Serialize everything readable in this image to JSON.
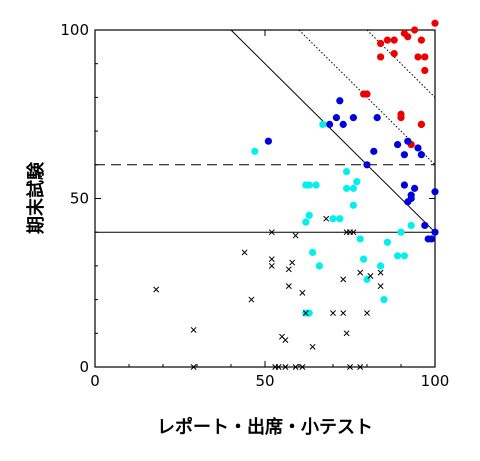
{
  "chart_data": {
    "type": "scatter",
    "title": "",
    "xlabel": "レポート・出席・小テスト",
    "ylabel": "期末試験",
    "xlim": [
      0,
      100
    ],
    "ylim": [
      0,
      100
    ],
    "xticks": [
      0,
      50,
      100
    ],
    "yticks": [
      0,
      50,
      100
    ],
    "grid": false,
    "colors": {
      "red": "#ee0000",
      "blue": "#0000dd",
      "cyan": "#00f0f0",
      "black": "#000000"
    },
    "reference_lines": [
      {
        "kind": "horizontal",
        "y": 60,
        "style": "dashed"
      },
      {
        "kind": "horizontal",
        "y": 40,
        "style": "solid"
      },
      {
        "kind": "diagonal",
        "x_plus_y": 140,
        "style": "solid"
      },
      {
        "kind": "diagonal",
        "x_plus_y": 160,
        "style": "dotted"
      },
      {
        "kind": "diagonal",
        "x_plus_y": 180,
        "style": "dotted"
      }
    ],
    "series": [
      {
        "color": "red",
        "marker": "filled-circle",
        "x": [
          84,
          84,
          86,
          88,
          88,
          91,
          92,
          94,
          95,
          96,
          97,
          97,
          100,
          90,
          90,
          79,
          80,
          93,
          96,
          96
        ],
        "y": [
          92,
          96,
          97,
          97,
          93,
          99,
          98,
          100,
          92,
          97,
          92,
          88,
          102,
          75,
          74,
          81,
          81,
          66,
          72,
          72
        ]
      },
      {
        "color": "blue",
        "marker": "filled-circle",
        "x": [
          51,
          69,
          71,
          72,
          73,
          76,
          80,
          82,
          83,
          89,
          91,
          91,
          93,
          93,
          95,
          96,
          97,
          99,
          100,
          100,
          92,
          92,
          94,
          98
        ],
        "y": [
          67,
          72,
          74,
          79,
          72,
          74,
          60,
          64,
          74,
          66,
          63,
          54,
          51,
          50,
          65,
          63,
          42,
          38,
          52,
          40,
          49,
          67,
          53,
          38
        ]
      },
      {
        "color": "cyan",
        "marker": "filled-circle",
        "x": [
          47,
          62,
          63,
          65,
          67,
          62,
          63,
          64,
          70,
          72,
          74,
          76,
          76,
          77,
          78,
          79,
          80,
          84,
          85,
          86,
          89,
          90,
          91,
          93,
          62,
          63,
          66,
          74
        ],
        "y": [
          64,
          54,
          54,
          54,
          72,
          43,
          45,
          34,
          44,
          44,
          58,
          53,
          48,
          55,
          38,
          32,
          26,
          30,
          20,
          37,
          33,
          40,
          33,
          42,
          16,
          16,
          30,
          53
        ]
      },
      {
        "color": "black",
        "marker": "x",
        "x": [
          18,
          29,
          29,
          44,
          46,
          52,
          52,
          52,
          53,
          55,
          57,
          57,
          58,
          59,
          61,
          62,
          64,
          68,
          73,
          73,
          74,
          74,
          75,
          75,
          78,
          78,
          80,
          81,
          84,
          84,
          54,
          56,
          59,
          61,
          76,
          56,
          70
        ],
        "y": [
          23,
          11,
          0,
          34,
          20,
          40,
          32,
          30,
          0,
          9,
          24,
          29,
          31,
          0,
          22,
          16,
          6,
          44,
          26,
          16,
          40,
          10,
          0,
          40,
          0,
          28,
          16,
          27,
          28,
          24,
          0,
          8,
          39,
          0,
          40,
          0,
          16
        ]
      }
    ]
  }
}
